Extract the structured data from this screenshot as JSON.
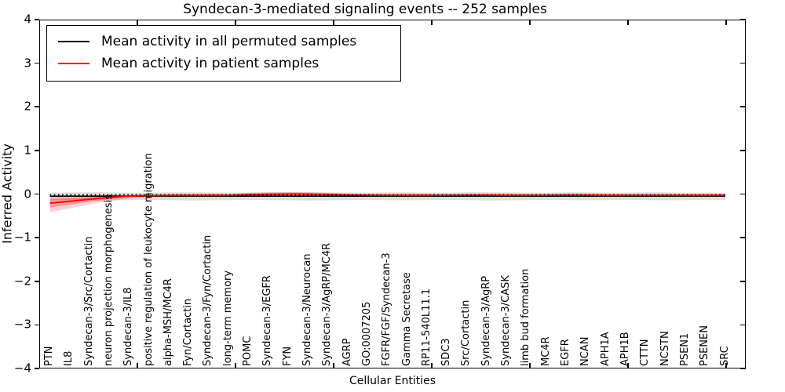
{
  "figure": {
    "title": "Syndecan-3-mediated signaling events -- 252 samples",
    "xlabel": "Cellular Entities",
    "ylabel": "Inferred Activity"
  },
  "legend": {
    "items": [
      {
        "label": "Mean activity in all permuted samples",
        "color": "#000000"
      },
      {
        "label": "Mean activity in patient samples",
        "color": "#ff0000"
      }
    ]
  },
  "chart_data": {
    "type": "line",
    "title": "Syndecan-3-mediated signaling events -- 252 samples",
    "xlabel": "Cellular Entities",
    "ylabel": "Inferred Activity",
    "ylim": [
      -4,
      4
    ],
    "yticks": [
      4,
      3,
      2,
      1,
      0,
      -1,
      -2,
      -3,
      -4
    ],
    "ytick_labels": [
      "4",
      "3",
      "2",
      "1",
      "0",
      "−1",
      "−2",
      "−3",
      "−4"
    ],
    "grid": false,
    "legend_position": "upper left",
    "zero_reference": 0.0,
    "categories": [
      "PTN",
      "IL8",
      "Syndecan-3/Src/Cortactin",
      "neuron projection morphogenesis",
      "Syndecan-3/IL8",
      "positive regulation of leukocyte migration",
      "alpha-MSH/MC4R",
      "Fyn/Cortactin",
      "Syndecan-3/Fyn/Cortactin",
      "long-term memory",
      "POMC",
      "Syndecan-3/EGFR",
      "FYN",
      "Syndecan-3/Neurocan",
      "Syndecan-3/AgRP/MC4R",
      "AGRP",
      "GO:0007205",
      "FGFR/FGF/Syndecan-3",
      "Gamma Secretase",
      "RP11-540L11.1",
      "SDC3",
      "Src/Cortactin",
      "Syndecan-3/AgRP",
      "Syndecan-3/CASK",
      "limb bud formation",
      "MC4R",
      "EGFR",
      "NCAN",
      "APH1A",
      "APH1B",
      "CTTN",
      "NCSTN",
      "PSEN1",
      "PSENEN",
      "SRC"
    ],
    "series": [
      {
        "name": "Mean activity in all permuted samples",
        "color": "#000000",
        "style": "solid",
        "values": [
          -0.03,
          -0.03,
          -0.03,
          -0.03,
          -0.03,
          -0.03,
          -0.03,
          -0.03,
          -0.03,
          -0.03,
          -0.03,
          -0.03,
          -0.03,
          -0.03,
          -0.03,
          -0.03,
          -0.03,
          -0.03,
          -0.03,
          -0.03,
          -0.03,
          -0.03,
          -0.03,
          -0.03,
          -0.03,
          -0.03,
          -0.03,
          -0.03,
          -0.03,
          -0.03,
          -0.03,
          -0.03,
          -0.03,
          -0.03,
          -0.03
        ]
      },
      {
        "name": "Mean activity in patient samples",
        "color": "#ff0000",
        "style": "solid",
        "values": [
          -0.19,
          -0.15,
          -0.1,
          -0.06,
          -0.03,
          -0.02,
          -0.015,
          -0.012,
          -0.012,
          -0.012,
          0.005,
          0.015,
          0.02,
          0.018,
          0.01,
          0.0,
          -0.008,
          -0.01,
          -0.012,
          -0.012,
          -0.01,
          -0.005,
          -0.005,
          -0.01,
          -0.012,
          -0.01,
          -0.005,
          -0.008,
          -0.012,
          -0.012,
          -0.012,
          -0.012,
          -0.012,
          -0.012,
          -0.012
        ]
      },
      {
        "name": "zero-reference-line",
        "color": "#000000",
        "style": "dotted",
        "values": [
          0,
          0,
          0,
          0,
          0,
          0,
          0,
          0,
          0,
          0,
          0,
          0,
          0,
          0,
          0,
          0,
          0,
          0,
          0,
          0,
          0,
          0,
          0,
          0,
          0,
          0,
          0,
          0,
          0,
          0,
          0,
          0,
          0,
          0,
          0
        ]
      }
    ],
    "bands": [
      {
        "name": "permuted-samples-spread",
        "color": "rgba(0,0,0,0.13)",
        "upper": [
          0.05,
          0.055,
          0.06,
          0.055,
          0.05,
          0.05,
          0.055,
          0.06,
          0.055,
          0.05,
          0.05,
          0.055,
          0.06,
          0.06,
          0.055,
          0.05,
          0.05,
          0.055,
          0.055,
          0.05,
          0.05,
          0.055,
          0.06,
          0.055,
          0.05,
          0.05,
          0.055,
          0.055,
          0.05,
          0.05,
          0.055,
          0.055,
          0.05,
          0.05,
          0.05
        ],
        "lower": [
          -0.12,
          -0.125,
          -0.13,
          -0.125,
          -0.12,
          -0.115,
          -0.12,
          -0.13,
          -0.125,
          -0.12,
          -0.115,
          -0.12,
          -0.125,
          -0.13,
          -0.125,
          -0.12,
          -0.115,
          -0.12,
          -0.125,
          -0.12,
          -0.115,
          -0.12,
          -0.13,
          -0.125,
          -0.12,
          -0.115,
          -0.12,
          -0.125,
          -0.12,
          -0.115,
          -0.12,
          -0.125,
          -0.12,
          -0.115,
          -0.115
        ]
      },
      {
        "name": "patient-samples-outer-spread",
        "color": "rgba(255,0,0,0.18)",
        "upper": [
          -0.05,
          -0.035,
          -0.02,
          0.0,
          0.01,
          0.015,
          0.02,
          0.02,
          0.02,
          0.022,
          0.05,
          0.06,
          0.065,
          0.06,
          0.04,
          0.025,
          0.02,
          0.02,
          0.02,
          0.02,
          0.02,
          0.025,
          0.025,
          0.02,
          0.02,
          0.02,
          0.035,
          0.03,
          0.02,
          0.02,
          0.02,
          0.02,
          0.02,
          0.02,
          0.02
        ],
        "lower": [
          -0.4,
          -0.31,
          -0.22,
          -0.14,
          -0.09,
          -0.065,
          -0.055,
          -0.05,
          -0.05,
          -0.05,
          -0.045,
          -0.035,
          -0.03,
          -0.032,
          -0.035,
          -0.04,
          -0.045,
          -0.045,
          -0.048,
          -0.048,
          -0.045,
          -0.04,
          -0.04,
          -0.045,
          -0.048,
          -0.045,
          -0.04,
          -0.042,
          -0.048,
          -0.048,
          -0.048,
          -0.048,
          -0.048,
          -0.048,
          -0.045
        ]
      },
      {
        "name": "patient-samples-inner-spread",
        "color": "rgba(255,0,0,0.28)",
        "upper": [
          -0.1,
          -0.08,
          -0.05,
          -0.025,
          -0.005,
          0.0,
          0.002,
          0.003,
          0.003,
          0.004,
          0.02,
          0.03,
          0.035,
          0.032,
          0.02,
          0.01,
          0.005,
          0.005,
          0.005,
          0.005,
          0.006,
          0.008,
          0.008,
          0.005,
          0.005,
          0.005,
          0.012,
          0.01,
          0.005,
          0.005,
          0.005,
          0.005,
          0.005,
          0.005,
          0.006
        ],
        "lower": [
          -0.29,
          -0.23,
          -0.16,
          -0.1,
          -0.06,
          -0.045,
          -0.035,
          -0.03,
          -0.03,
          -0.03,
          -0.028,
          -0.02,
          -0.015,
          -0.018,
          -0.022,
          -0.026,
          -0.03,
          -0.03,
          -0.03,
          -0.03,
          -0.028,
          -0.024,
          -0.024,
          -0.028,
          -0.03,
          -0.028,
          -0.024,
          -0.026,
          -0.03,
          -0.03,
          -0.03,
          -0.03,
          -0.03,
          -0.03,
          -0.028
        ]
      }
    ]
  }
}
